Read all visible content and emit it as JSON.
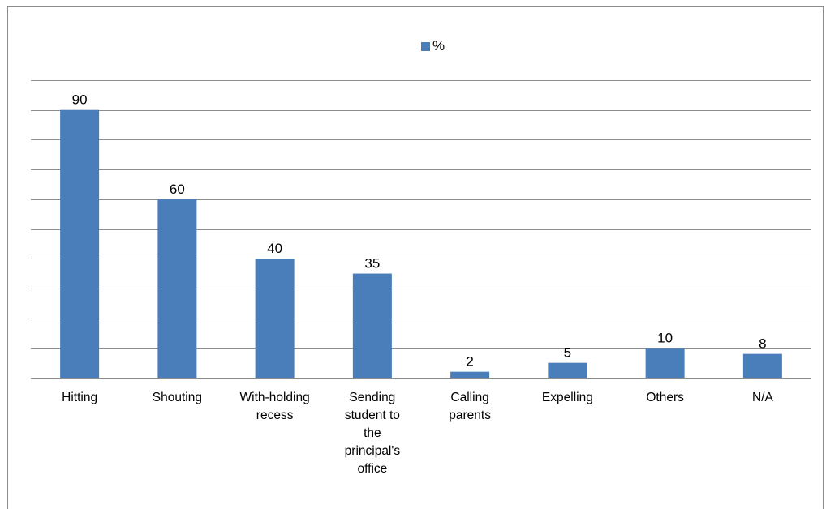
{
  "chart_data": {
    "type": "bar",
    "categories": [
      "Hitting",
      "Shouting",
      "With-holding recess",
      "Sending student to the principal's office",
      "Calling parents",
      "Expelling",
      "Others",
      "N/A"
    ],
    "category_lines": [
      [
        "Hitting"
      ],
      [
        "Shouting"
      ],
      [
        "With-holding",
        "recess"
      ],
      [
        "Sending",
        "student to",
        "the",
        "principal's",
        "office"
      ],
      [
        "Calling",
        "parents"
      ],
      [
        "Expelling"
      ],
      [
        "Others"
      ],
      [
        "N/A"
      ]
    ],
    "series": [
      {
        "name": "%",
        "values": [
          90,
          60,
          40,
          35,
          2,
          5,
          10,
          8
        ],
        "color": "#4a7ebb"
      }
    ],
    "data_labels": [
      "90",
      "60",
      "40",
      "35",
      "2",
      "5",
      "10",
      "8"
    ],
    "ylim": [
      0,
      100
    ],
    "y_gridline_step": 10,
    "grid": true,
    "legend_position": "top-center",
    "title": "",
    "xlabel": "",
    "ylabel": ""
  }
}
